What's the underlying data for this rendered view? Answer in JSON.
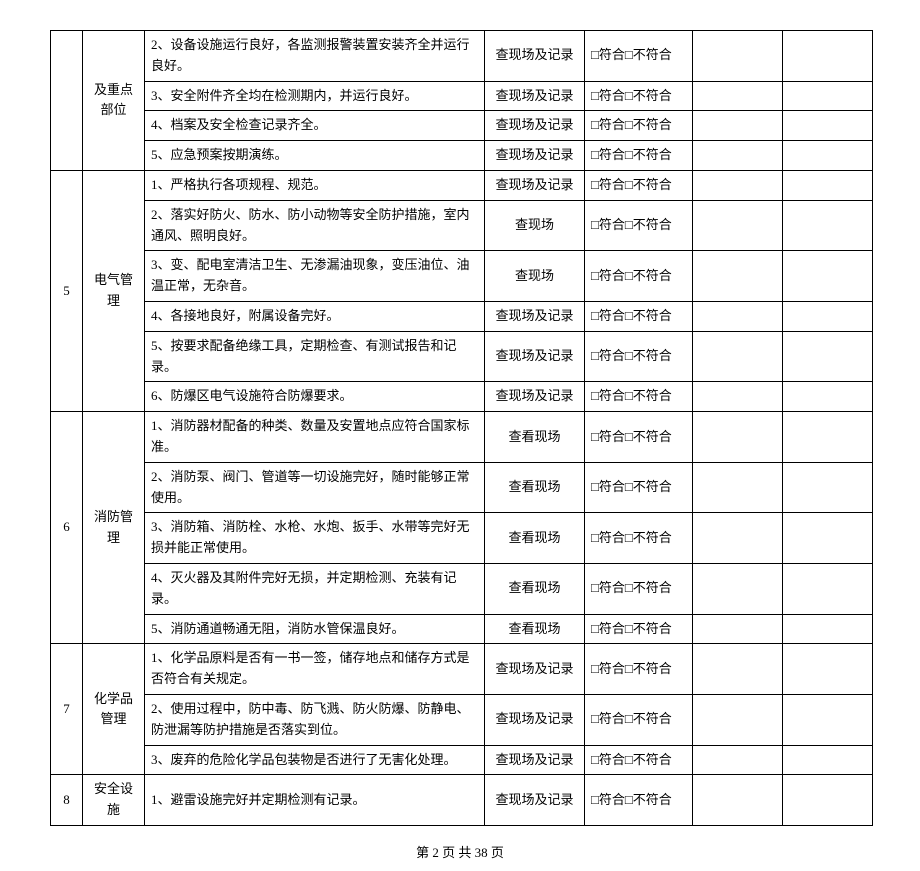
{
  "compliance_label": "□符合□不符合",
  "footer": "第 2 页 共 38 页",
  "sections": [
    {
      "num": "",
      "category": "及重点部位",
      "rows": [
        {
          "desc": "2、设备设施运行良好，各监测报警装置安装齐全并运行良好。",
          "method": "查现场及记录"
        },
        {
          "desc": "3、安全附件齐全均在检测期内，并运行良好。",
          "method": "查现场及记录"
        },
        {
          "desc": "4、档案及安全检查记录齐全。",
          "method": "查现场及记录"
        },
        {
          "desc": "5、应急预案按期演练。",
          "method": "查现场及记录"
        }
      ]
    },
    {
      "num": "5",
      "category": "电气管理",
      "rows": [
        {
          "desc": "1、严格执行各项规程、规范。",
          "method": "查现场及记录"
        },
        {
          "desc": "2、落实好防火、防水、防小动物等安全防护措施，室内通风、照明良好。",
          "method": "查现场"
        },
        {
          "desc": "3、变、配电室清洁卫生、无渗漏油现象，变压油位、油温正常，无杂音。",
          "method": "查现场"
        },
        {
          "desc": "4、各接地良好，附属设备完好。",
          "method": "查现场及记录"
        },
        {
          "desc": "5、按要求配备绝缘工具，定期检查、有测试报告和记录。",
          "method": "查现场及记录"
        },
        {
          "desc": "6、防爆区电气设施符合防爆要求。",
          "method": "查现场及记录"
        }
      ]
    },
    {
      "num": "6",
      "category": "消防管理",
      "rows": [
        {
          "desc": "1、消防器材配备的种类、数量及安置地点应符合国家标准。",
          "method": "查看现场"
        },
        {
          "desc": "2、消防泵、阀门、管道等一切设施完好，随时能够正常使用。",
          "method": "查看现场"
        },
        {
          "desc": "3、消防箱、消防栓、水枪、水炮、扳手、水带等完好无损并能正常使用。",
          "method": "查看现场"
        },
        {
          "desc": "4、灭火器及其附件完好无损，并定期检测、充装有记录。",
          "method": "查看现场"
        },
        {
          "desc": "5、消防通道畅通无阻，消防水管保温良好。",
          "method": "查看现场"
        }
      ]
    },
    {
      "num": "7",
      "category": "化学品管理",
      "rows": [
        {
          "desc": "1、化学品原料是否有一书一签，储存地点和储存方式是否符合有关规定。",
          "method": "查现场及记录"
        },
        {
          "desc": "2、使用过程中，防中毒、防飞溅、防火防爆、防静电、防泄漏等防护措施是否落实到位。",
          "method": "查现场及记录"
        },
        {
          "desc": "3、废弃的危险化学品包装物是否进行了无害化处理。",
          "method": "查现场及记录"
        }
      ]
    },
    {
      "num": "8",
      "category": "安全设施",
      "rows": [
        {
          "desc": "1、避雷设施完好并定期检测有记录。",
          "method": "查现场及记录"
        }
      ]
    }
  ]
}
